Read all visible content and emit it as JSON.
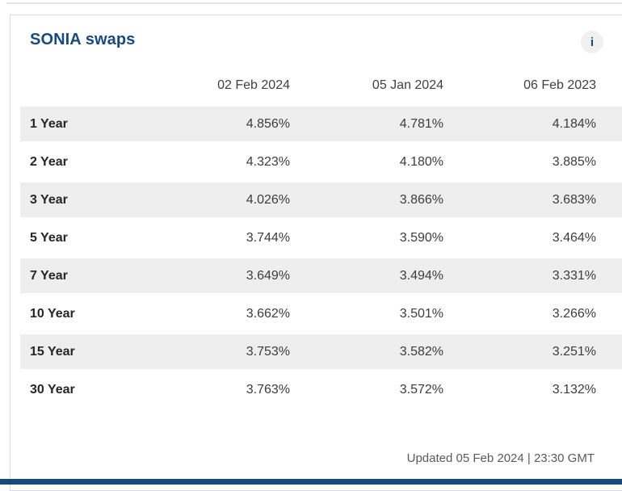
{
  "card": {
    "title": "SONIA swaps",
    "info_icon_glyph": "i",
    "updated_text": "Updated 05 Feb 2024 | 23:30 GMT"
  },
  "table": {
    "columns": [
      "02 Feb 2024",
      "05 Jan 2024",
      "06 Feb 2023"
    ],
    "rows": [
      {
        "label": "1 Year",
        "values": [
          "4.856%",
          "4.781%",
          "4.184%"
        ]
      },
      {
        "label": "2 Year",
        "values": [
          "4.323%",
          "4.180%",
          "3.885%"
        ]
      },
      {
        "label": "3 Year",
        "values": [
          "4.026%",
          "3.866%",
          "3.683%"
        ]
      },
      {
        "label": "5 Year",
        "values": [
          "3.744%",
          "3.590%",
          "3.464%"
        ]
      },
      {
        "label": "7 Year",
        "values": [
          "3.649%",
          "3.494%",
          "3.331%"
        ]
      },
      {
        "label": "10 Year",
        "values": [
          "3.662%",
          "3.501%",
          "3.266%"
        ]
      },
      {
        "label": "15 Year",
        "values": [
          "3.753%",
          "3.582%",
          "3.251%"
        ]
      },
      {
        "label": "30 Year",
        "values": [
          "3.763%",
          "3.572%",
          "3.132%"
        ]
      }
    ]
  },
  "colors": {
    "accent_navy": "#1a4a7d",
    "stripe_gray": "#eeeeee",
    "card_border": "#d9d9d9",
    "bottom_bar": "#17497b"
  }
}
